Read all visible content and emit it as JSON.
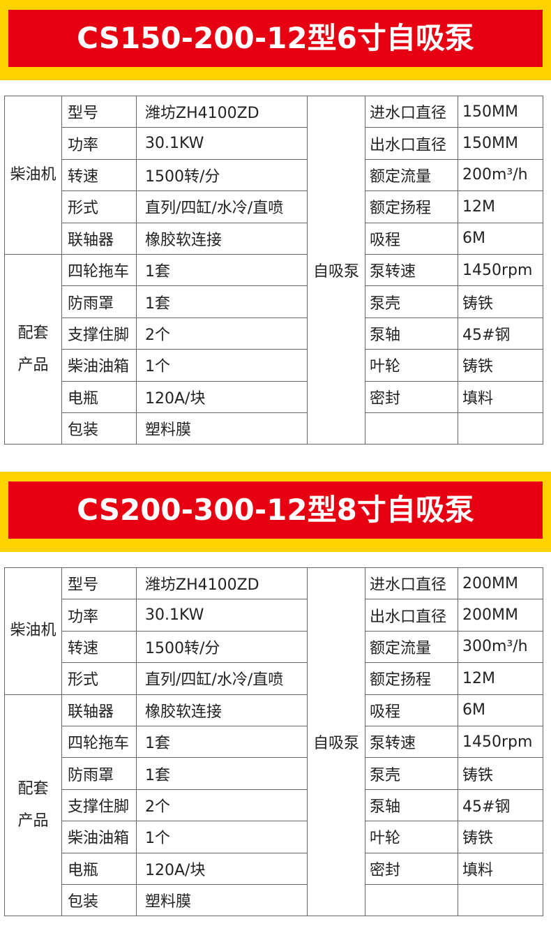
{
  "sections": [
    {
      "title": "CS150-200-12型6寸自吸泵",
      "groups": [
        {
          "label_lines": [
            "柴油机"
          ],
          "rows": 5
        },
        {
          "label_lines": [
            "配套",
            "产品"
          ],
          "rows": 6
        }
      ],
      "left_rows": [
        [
          "型号",
          "潍坊ZH4100ZD"
        ],
        [
          "功率",
          "30.1KW"
        ],
        [
          "转速",
          "1500转/分"
        ],
        [
          "形式",
          "直列/四缸/水冷/直喷"
        ],
        [
          "联轴器",
          "橡胶软连接"
        ],
        [
          "四轮拖车",
          "1套"
        ],
        [
          "防雨罩",
          "1套"
        ],
        [
          "支撑住脚",
          "2个"
        ],
        [
          "柴油油箱",
          "1个"
        ],
        [
          "电瓶",
          "120A/块"
        ],
        [
          "包装",
          "塑料膜"
        ]
      ],
      "pump_label": "自吸泵",
      "right_rows": [
        [
          "进水口直径",
          "150MM"
        ],
        [
          "出水口直径",
          "150MM"
        ],
        [
          "额定流量",
          "200m³/h"
        ],
        [
          "额定扬程",
          "12M"
        ],
        [
          "吸程",
          "6M"
        ],
        [
          "泵转速",
          "1450rpm"
        ],
        [
          "泵壳",
          "铸铁"
        ],
        [
          "泵轴",
          "45#钢"
        ],
        [
          "叶轮",
          "铸铁"
        ],
        [
          "密封",
          "填料"
        ]
      ]
    },
    {
      "title": "CS200-300-12型8寸自吸泵",
      "groups": [
        {
          "label_lines": [
            "柴油机"
          ],
          "rows": 4
        },
        {
          "label_lines": [
            "配套",
            "产品"
          ],
          "rows": 7
        }
      ],
      "left_rows": [
        [
          "型号",
          "潍坊ZH4100ZD"
        ],
        [
          "功率",
          "30.1KW"
        ],
        [
          "转速",
          "1500转/分"
        ],
        [
          "形式",
          "直列/四缸/水冷/直喷"
        ],
        [
          "联轴器",
          "橡胶软连接"
        ],
        [
          "四轮拖车",
          "1套"
        ],
        [
          "防雨罩",
          "1套"
        ],
        [
          "支撑住脚",
          "2个"
        ],
        [
          "柴油油箱",
          "1个"
        ],
        [
          "电瓶",
          "120A/块"
        ],
        [
          "包装",
          "塑料膜"
        ]
      ],
      "pump_label": "自吸泵",
      "right_rows": [
        [
          "进水口直径",
          "200MM"
        ],
        [
          "出水口直径",
          "200MM"
        ],
        [
          "额定流量",
          "300m³/h"
        ],
        [
          "额定扬程",
          "12M"
        ],
        [
          "吸程",
          "6M"
        ],
        [
          "泵转速",
          "1450rpm"
        ],
        [
          "泵壳",
          "铸铁"
        ],
        [
          "泵轴",
          "45#钢"
        ],
        [
          "叶轮",
          "铸铁"
        ],
        [
          "密封",
          "填料"
        ]
      ]
    }
  ]
}
